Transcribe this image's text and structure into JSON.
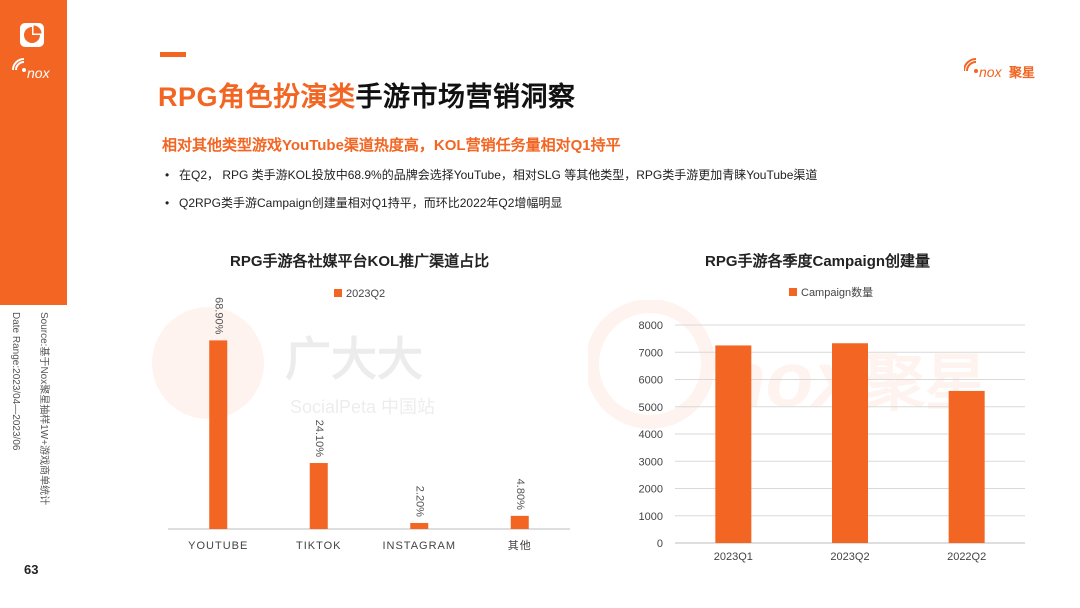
{
  "page": {
    "title_highlight": "RPG角色扮演类",
    "title_rest": "手游市场营销洞察",
    "subtitle": "相对其他类型游戏YouTube渠道热度高，KOL营销任务量相对Q1持平",
    "bullets": [
      "在Q2， RPG 类手游KOL投放中68.9%的品牌会选择YouTube，相对SLG 等其他类型，RPG类手游更加青睐YouTube渠道",
      "Q2RPG类手游Campaign创建量相对Q1持平，而环比2022年Q2增幅明显"
    ],
    "source_line1": "Source:基于Nox聚星抽样1W+游戏商单统计",
    "source_line2": "Date Range:2023/04—2023/06",
    "page_number": "63",
    "brand_text": "聚星",
    "watermark_left_text": "广大大",
    "watermark_left_sub": "SocialPeta 中国站",
    "watermark_right_text": "聚星"
  },
  "colors": {
    "accent": "#f26522",
    "bar": "#f26522"
  },
  "chart_data": [
    {
      "type": "bar",
      "title": "RPG手游各社媒平台KOL推广渠道占比",
      "categories": [
        "YOUTUBE",
        "TIKTOK",
        "INSTAGRAM",
        "其他"
      ],
      "series": [
        {
          "name": "2023Q2",
          "values": [
            68.9,
            24.1,
            2.2,
            4.8
          ]
        }
      ],
      "data_labels": [
        "68.90%",
        "24.10%",
        "2.20%",
        "4.80%"
      ],
      "ylim": [
        0,
        80
      ],
      "grid": false,
      "legend": "top"
    },
    {
      "type": "bar",
      "title": "RPG手游各季度Campaign创建量",
      "categories": [
        "2023Q1",
        "2023Q2",
        "2022Q2"
      ],
      "series": [
        {
          "name": "Campaign数量",
          "values": [
            7250,
            7330,
            5580
          ]
        }
      ],
      "yticks": [
        "0",
        "1000",
        "2000",
        "3000",
        "4000",
        "5000",
        "6000",
        "7000",
        "8000"
      ],
      "ylim": [
        0,
        8000
      ],
      "grid": true,
      "legend": "top"
    }
  ]
}
